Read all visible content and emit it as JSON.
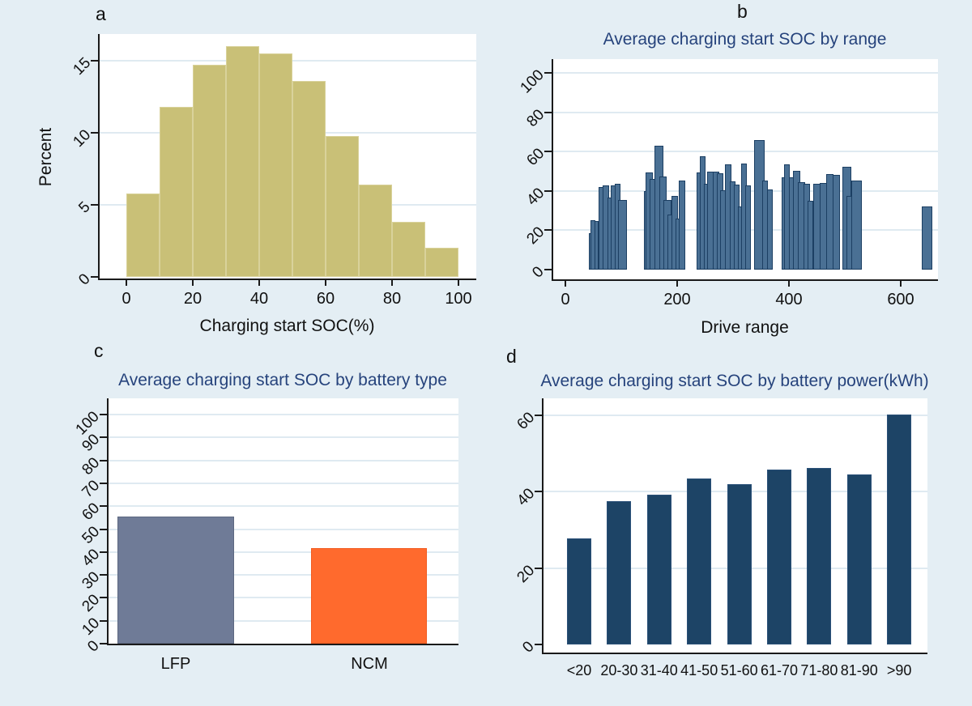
{
  "figure": {
    "panel_letters": {
      "a": "a",
      "b": "b",
      "c": "c",
      "d": "d"
    },
    "background_color": "#e4eef4",
    "title_color": "#26437c"
  },
  "chart_data": [
    {
      "id": "a",
      "type": "histogram",
      "title": "",
      "xlabel": "Charging start SOC(%)",
      "ylabel": "Percent",
      "bin_start": 0,
      "bin_width": 10,
      "categories": [
        "0-10",
        "10-20",
        "20-30",
        "30-40",
        "40-50",
        "50-60",
        "60-70",
        "70-80",
        "80-90",
        "90-100"
      ],
      "values": [
        5.8,
        11.8,
        14.7,
        16.0,
        15.5,
        13.6,
        9.8,
        6.4,
        3.8,
        2.0
      ],
      "xticks": [
        0,
        20,
        40,
        60,
        80,
        100
      ],
      "yticks": [
        0,
        5,
        10,
        15
      ],
      "xlim": [
        -8,
        106
      ],
      "ylim": [
        0,
        17
      ],
      "grid": true,
      "bar_color": "#c9c077",
      "bar_border_color": "#d9d29b"
    },
    {
      "id": "b",
      "type": "bar",
      "title": "Average charging start SOC by range",
      "xlabel": "Drive range",
      "ylabel": "",
      "xticks": [
        0,
        200,
        400,
        600
      ],
      "yticks": [
        0,
        20,
        40,
        60,
        80,
        100
      ],
      "xlim": [
        -20,
        670
      ],
      "ylim": [
        0,
        107
      ],
      "grid": true,
      "bar_color": "#4a7094",
      "bar_border_color": "#1c3f63",
      "bars_x_w_h": [
        [
          42,
          6,
          18.5
        ],
        [
          45,
          9,
          25
        ],
        [
          52,
          8,
          24.5
        ],
        [
          59,
          13,
          41.8
        ],
        [
          67,
          11,
          42.7
        ],
        [
          75,
          10,
          36.5
        ],
        [
          81,
          13,
          43
        ],
        [
          89,
          10,
          43.5
        ],
        [
          94,
          16,
          35.5
        ],
        [
          141,
          11,
          40
        ],
        [
          144,
          12,
          49.3
        ],
        [
          151,
          12,
          46.2
        ],
        [
          159,
          16,
          62.8
        ],
        [
          168,
          13,
          47.4
        ],
        [
          176,
          14,
          35.3
        ],
        [
          182,
          10,
          28
        ],
        [
          190,
          12,
          37.6
        ],
        [
          197,
          7,
          26
        ],
        [
          203,
          12,
          45.2
        ],
        [
          235,
          11,
          49.4
        ],
        [
          240,
          11,
          57.8
        ],
        [
          248,
          10,
          43.6
        ],
        [
          254,
          11,
          50
        ],
        [
          264,
          11,
          49.6
        ],
        [
          271,
          11,
          48.9
        ],
        [
          277,
          10,
          40.4
        ],
        [
          286,
          11,
          53.6
        ],
        [
          294,
          10,
          45
        ],
        [
          301,
          11,
          43.2
        ],
        [
          308,
          9,
          32
        ],
        [
          314,
          11,
          54
        ],
        [
          322,
          10,
          42.6
        ],
        [
          337,
          19,
          66
        ],
        [
          352,
          11,
          45.4
        ],
        [
          361,
          10,
          40.6
        ],
        [
          387,
          10,
          46.9
        ],
        [
          391,
          11,
          53.7
        ],
        [
          400,
          10,
          47
        ],
        [
          407,
          13,
          50.4
        ],
        [
          416,
          13,
          44.6
        ],
        [
          426,
          11,
          43.7
        ],
        [
          434,
          10,
          35
        ],
        [
          444,
          13,
          43.8
        ],
        [
          455,
          13,
          44
        ],
        [
          467,
          13,
          48.4
        ],
        [
          478,
          13,
          48
        ],
        [
          496,
          15,
          52.4
        ],
        [
          503,
          10,
          37.4
        ],
        [
          512,
          18,
          45.4
        ],
        [
          637,
          19,
          32
        ]
      ]
    },
    {
      "id": "c",
      "type": "bar",
      "title": "Average charging start SOC by battery type",
      "xlabel": "",
      "ylabel": "",
      "categories": [
        "LFP",
        "NCM"
      ],
      "values": [
        55.5,
        41.7
      ],
      "colors": [
        "#6f7b97",
        "#ff6a2d"
      ],
      "border_colors": [
        "#5d6880",
        "#f25c20"
      ],
      "yticks": [
        0,
        10,
        20,
        30,
        40,
        50,
        60,
        70,
        80,
        90,
        100
      ],
      "ylim": [
        0,
        107
      ],
      "grid": true
    },
    {
      "id": "d",
      "type": "bar",
      "title": "Average charging start SOC by battery power(kWh)",
      "xlabel": "",
      "ylabel": "",
      "categories": [
        "<20",
        "20-30",
        "31-40",
        "41-50",
        "51-60",
        "61-70",
        "71-80",
        "81-90",
        ">90"
      ],
      "values": [
        27.8,
        37.5,
        39.3,
        43.5,
        42.0,
        45.7,
        46.2,
        44.5,
        60.1
      ],
      "yticks": [
        0,
        20,
        40,
        60
      ],
      "ylim": [
        0,
        64.5
      ],
      "grid": true,
      "bar_color": "#1d4466",
      "bar_border_color": "#2a5078"
    }
  ]
}
